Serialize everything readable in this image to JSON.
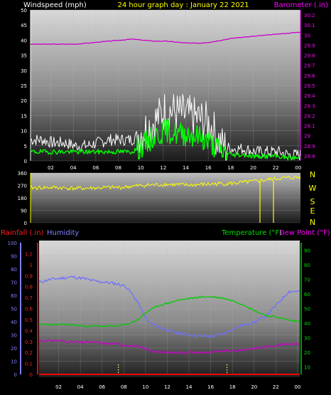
{
  "header": {
    "wind_label": "Windspeed (mph)",
    "title": "24 hour graph day : January 22 2021",
    "baro_label": "Barometer (.in)"
  },
  "compass": [
    "N",
    "W",
    "S",
    "E",
    "N"
  ],
  "bottom_header": {
    "rain_label": "Rainfall (.in)",
    "humidity_label": "Humidity",
    "temp_label": "Temperature (°F)",
    "dew_label": "Dew Point (°F)"
  },
  "colors": {
    "wind_gust": "#ffffff",
    "wind_avg": "#00ff00",
    "barometer": "#cc00cc",
    "direction": "#ffff00",
    "humidity": "#7070ff",
    "temperature": "#00cc00",
    "dewpoint": "#cc00cc",
    "rainfall": "#ff0000",
    "title": "#ffff00"
  },
  "chart_data": [
    {
      "type": "line",
      "title": "24 hour graph day : January 22 2021",
      "x_ticks": [
        "02",
        "04",
        "06",
        "08",
        "10",
        "12",
        "14",
        "16",
        "18",
        "20",
        "22",
        "00"
      ],
      "x": [
        0,
        1,
        2,
        3,
        4,
        5,
        6,
        7,
        8,
        9,
        10,
        11,
        12,
        13,
        14,
        15,
        16,
        17,
        18,
        19,
        20,
        21,
        22,
        23,
        24
      ],
      "ylabel": "Windspeed (mph)",
      "ylim": [
        0,
        50
      ],
      "y_ticks": [
        0,
        5,
        10,
        15,
        20,
        25,
        30,
        35,
        40,
        45,
        50
      ],
      "y2label": "Barometer (.in)",
      "y2lim": [
        28.75,
        30.25
      ],
      "y2_ticks": [
        "28.8",
        "28.9",
        "29",
        "29.1",
        "29.2",
        "29.3",
        "29.4",
        "29.5",
        "29.6",
        "29.7",
        "29.8",
        "29.9",
        "30",
        "30.1",
        "30.2"
      ],
      "series": [
        {
          "values": [
            7,
            7,
            6,
            6,
            5,
            5,
            6,
            7,
            7,
            7,
            10,
            13,
            17,
            16,
            15,
            14,
            12,
            5,
            4,
            4,
            3,
            3,
            3,
            2,
            2
          ]
        },
        {
          "values": [
            3,
            3,
            3,
            3,
            3,
            3,
            3,
            3,
            3,
            3,
            5,
            8,
            10,
            9,
            9,
            8,
            6,
            3,
            2,
            2,
            1.5,
            1.5,
            1.5,
            1,
            1
          ]
        },
        {
          "values": [
            29.91,
            29.91,
            29.91,
            29.91,
            29.91,
            29.92,
            29.93,
            29.94,
            29.95,
            29.96,
            29.95,
            29.94,
            29.94,
            29.93,
            29.92,
            29.92,
            29.93,
            29.95,
            29.97,
            29.98,
            29.99,
            30.0,
            30.01,
            30.02,
            30.03
          ]
        }
      ]
    },
    {
      "type": "line",
      "x": [
        0,
        2,
        4,
        6,
        8,
        10,
        12,
        14,
        16,
        18,
        20,
        22,
        24
      ],
      "ylim": [
        0,
        360
      ],
      "y_ticks": [
        0,
        90,
        180,
        270,
        360
      ],
      "series": [
        {
          "values": [
            252,
            255,
            248,
            252,
            255,
            270,
            278,
            272,
            280,
            285,
            300,
            320,
            330
          ]
        }
      ],
      "spikes": [
        {
          "x": 20.4,
          "y": 0
        },
        {
          "x": 21.6,
          "y": 0
        }
      ]
    },
    {
      "type": "line",
      "x": [
        0,
        1,
        2,
        3,
        4,
        5,
        6,
        7,
        8,
        9,
        10,
        11,
        12,
        13,
        14,
        15,
        16,
        17,
        18,
        19,
        20,
        21,
        22,
        23,
        24
      ],
      "rain_ylim": [
        0,
        1.2
      ],
      "rain_ticks": [
        "0",
        "0.1",
        "0.2",
        "0.3",
        "0.4",
        "0.5",
        "0.6",
        "0.7",
        "0.8",
        "0.9",
        "1",
        "1.1"
      ],
      "humidity_ylim": [
        0,
        100
      ],
      "humidity_ticks": [
        0,
        10,
        20,
        30,
        40,
        50,
        60,
        70,
        80,
        90,
        100
      ],
      "temp_ylim": [
        5,
        95
      ],
      "temp_ticks": [
        10,
        20,
        30,
        40,
        50,
        60,
        70,
        80,
        90
      ],
      "series": [
        {
          "axis": "humidity",
          "values": [
            70,
            72,
            73,
            74,
            73,
            71,
            70,
            69,
            67,
            56,
            40,
            36,
            33,
            31,
            30,
            29,
            29,
            31,
            35,
            38,
            40,
            45,
            54,
            63,
            63
          ]
        },
        {
          "axis": "temp",
          "values": [
            39,
            39,
            39,
            39,
            38,
            38,
            38,
            38,
            39,
            42,
            48,
            52,
            54,
            56,
            57,
            58,
            58,
            57,
            55,
            52,
            48,
            45,
            44,
            42,
            41
          ]
        },
        {
          "axis": "temp",
          "values": [
            28,
            28,
            28,
            27,
            27,
            27,
            26,
            26,
            25,
            24,
            22,
            20,
            20,
            20,
            20,
            20,
            20,
            21,
            21,
            22,
            23,
            24,
            25,
            26,
            26
          ]
        },
        {
          "axis": "rain",
          "values": [
            0,
            0,
            0,
            0,
            0,
            0,
            0,
            0,
            0,
            0,
            0,
            0,
            0,
            0,
            0,
            0,
            0,
            0,
            0,
            0,
            0,
            0,
            0,
            0,
            0
          ]
        }
      ],
      "dotted_markers_x": [
        7.3,
        17.3
      ]
    }
  ]
}
